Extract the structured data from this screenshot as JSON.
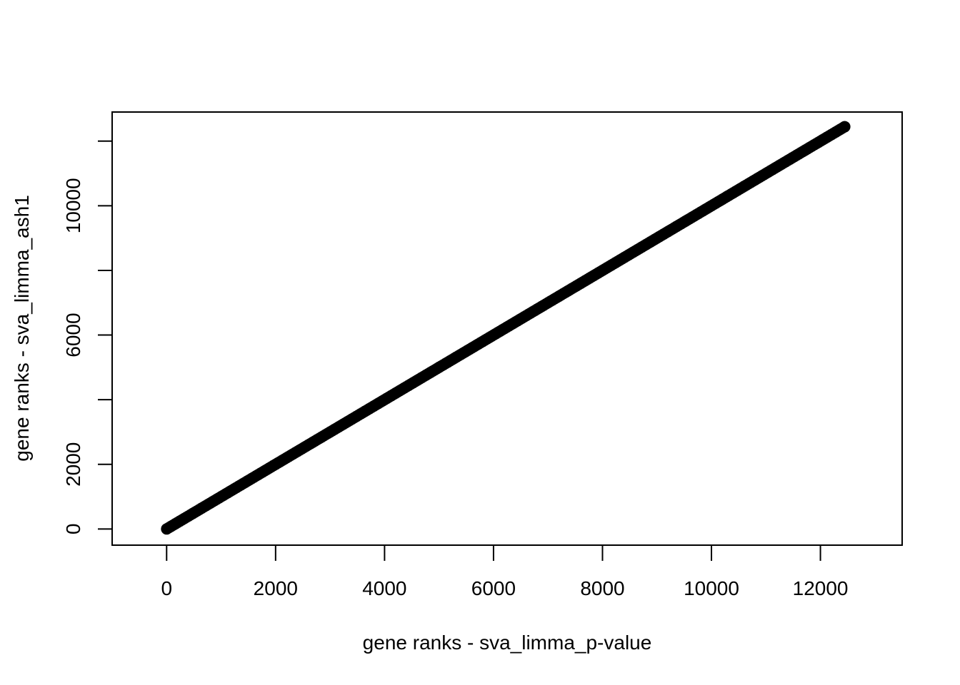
{
  "chart_data": {
    "type": "scatter",
    "xlabel": "gene ranks - sva_limma_p-value",
    "ylabel": "gene ranks - sva_limma_ash1",
    "xlim": [
      -1000,
      13500
    ],
    "ylim": [
      -500,
      12900
    ],
    "x_ticks": [
      0,
      2000,
      4000,
      6000,
      8000,
      10000,
      12000
    ],
    "x_tick_labels": [
      "0",
      "2000",
      "4000",
      "6000",
      "8000",
      "10000",
      "12000"
    ],
    "y_ticks": [
      0,
      2000,
      4000,
      6000,
      8000,
      10000,
      12000
    ],
    "y_tick_labels": [
      "0",
      "2000",
      "",
      "6000",
      "",
      "10000",
      ""
    ],
    "grid": false,
    "legend": "none",
    "point_color": "#000000",
    "series": [
      {
        "x_start": 1,
        "x_end": 12446,
        "y_start": 1,
        "y_end": 12446,
        "n_points": 12446,
        "relation": "y = x"
      }
    ]
  }
}
